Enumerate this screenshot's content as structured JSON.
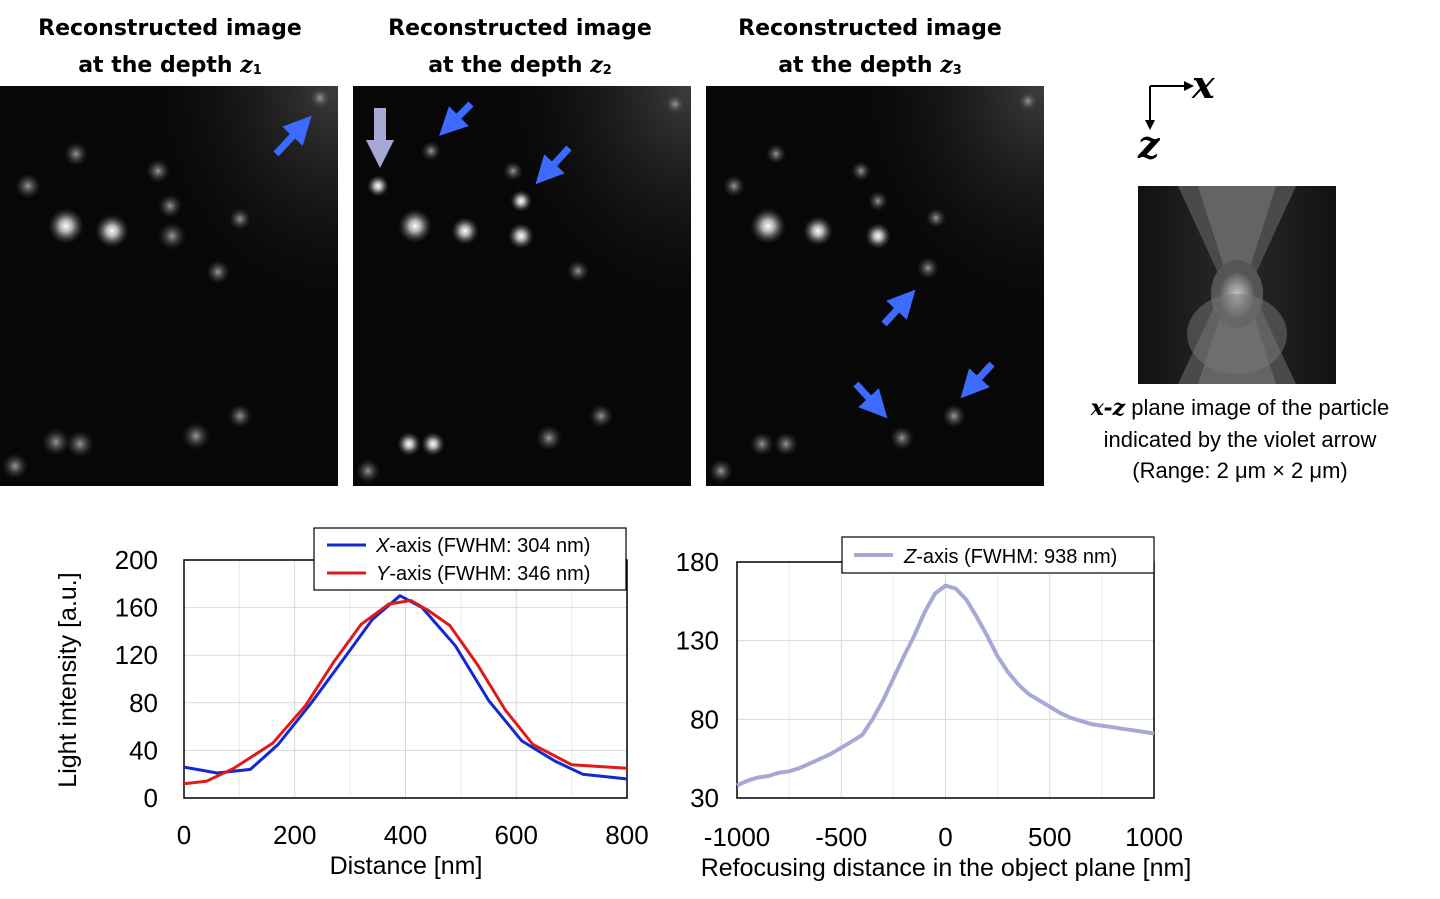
{
  "panels": [
    {
      "title_line1": "Reconstructed image",
      "title_prefix": "at  the depth ",
      "z": "z",
      "sub": "1"
    },
    {
      "title_line1": "Reconstructed image",
      "title_prefix": "at  the depth ",
      "z": "z",
      "sub": "2"
    },
    {
      "title_line1": "Reconstructed image",
      "title_prefix": "at  the depth ",
      "z": "z",
      "sub": "3"
    }
  ],
  "axes_glyph": {
    "x": "x",
    "z": "z"
  },
  "caption": {
    "xz": "x-z",
    "line1_rest": " plane image of the particle",
    "line2": "indicated by the violet arrow",
    "line3": "(Range: 2 μm × 2 μm)"
  },
  "colors": {
    "blue_arrow": "#3d6bff",
    "violet_arrow": "#a6a8d6",
    "x_series": "#1428d0",
    "y_series": "#e01a1a",
    "z_series": "#a6a9d6"
  },
  "chart_data": [
    {
      "type": "line",
      "title": "",
      "xlabel": "Distance [nm]",
      "ylabel": "Light intensity [a.u.]",
      "xlim": [
        0,
        800
      ],
      "ylim": [
        0,
        200
      ],
      "xticks": [
        "0",
        "200",
        "400",
        "600",
        "800"
      ],
      "yticks": [
        "0",
        "40",
        "80",
        "120",
        "160",
        "200"
      ],
      "grid": true,
      "legend_position": "top-right",
      "series": [
        {
          "name": "X-axis",
          "italic": "X",
          "label_rest": "-axis (FWHM: 304 nm)",
          "color": "#1428d0",
          "x": [
            0,
            60,
            120,
            170,
            230,
            290,
            340,
            390,
            430,
            490,
            550,
            610,
            670,
            720,
            780,
            800
          ],
          "y": [
            26,
            21,
            24,
            45,
            80,
            118,
            150,
            170,
            160,
            128,
            82,
            48,
            31,
            20,
            17,
            16
          ]
        },
        {
          "name": "Y-axis",
          "italic": "Y",
          "label_rest": "-axis (FWHM: 346 nm)",
          "color": "#e01a1a",
          "x": [
            0,
            40,
            90,
            160,
            220,
            270,
            320,
            370,
            410,
            440,
            480,
            530,
            580,
            630,
            700,
            800
          ],
          "y": [
            12,
            14,
            25,
            46,
            78,
            114,
            146,
            163,
            166,
            158,
            145,
            112,
            74,
            45,
            28,
            25
          ]
        }
      ]
    },
    {
      "type": "line",
      "title": "",
      "xlabel": "Refocusing distance in the object plane [nm]",
      "ylabel": "",
      "xlim": [
        -1000,
        1000
      ],
      "ylim": [
        30,
        180
      ],
      "xticks": [
        "-1000",
        "-500",
        "0",
        "500",
        "1000"
      ],
      "yticks": [
        "30",
        "80",
        "130",
        "180"
      ],
      "grid": true,
      "legend_position": "top-right",
      "series": [
        {
          "name": "Z-axis",
          "italic": "Z",
          "label_rest": "-axis (FWHM: 938 nm)",
          "color": "#a6a9d6",
          "x": [
            -1000,
            -950,
            -900,
            -850,
            -800,
            -750,
            -700,
            -650,
            -600,
            -550,
            -500,
            -450,
            -400,
            -350,
            -300,
            -250,
            -200,
            -150,
            -100,
            -50,
            0,
            50,
            100,
            150,
            200,
            250,
            300,
            350,
            400,
            450,
            500,
            550,
            600,
            650,
            700,
            750,
            800,
            850,
            900,
            950,
            1000
          ],
          "y": [
            38,
            41,
            43,
            44,
            46,
            47,
            49,
            52,
            55,
            58,
            62,
            66,
            70,
            80,
            92,
            106,
            120,
            133,
            148,
            160,
            165,
            163,
            156,
            145,
            133,
            120,
            110,
            102,
            96,
            92,
            88,
            84,
            81,
            79,
            77,
            76,
            75,
            74,
            73,
            72,
            71
          ]
        }
      ]
    }
  ]
}
